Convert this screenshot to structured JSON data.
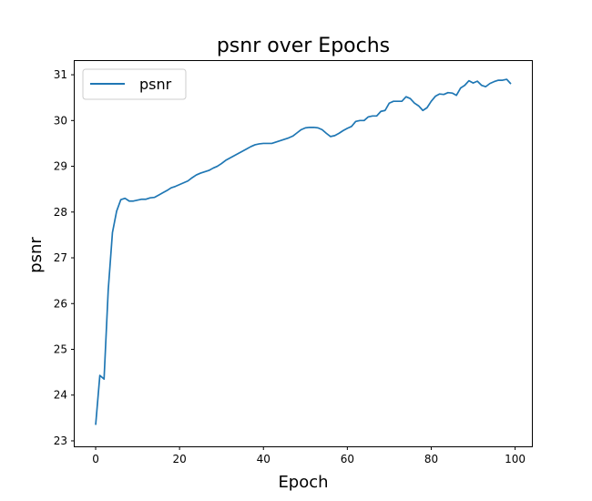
{
  "chart_data": {
    "type": "line",
    "title": "psnr over Epochs",
    "xlabel": "Epoch",
    "ylabel": "psnr",
    "xlim": [
      -5,
      104
    ],
    "ylim": [
      22.88,
      31.3
    ],
    "xticks": [
      0,
      20,
      40,
      60,
      80,
      100
    ],
    "yticks": [
      23,
      24,
      25,
      26,
      27,
      28,
      29,
      30,
      31
    ],
    "grid": false,
    "legend_position": "top-left",
    "series": [
      {
        "name": "psnr",
        "color": "#1f77b4",
        "x": [
          0,
          1,
          2,
          3,
          4,
          5,
          6,
          7,
          8,
          9,
          10,
          11,
          12,
          13,
          14,
          15,
          16,
          17,
          18,
          19,
          20,
          21,
          22,
          23,
          24,
          25,
          26,
          27,
          28,
          29,
          30,
          31,
          32,
          33,
          34,
          35,
          36,
          37,
          38,
          39,
          40,
          41,
          42,
          43,
          44,
          45,
          46,
          47,
          48,
          49,
          50,
          51,
          52,
          53,
          54,
          55,
          56,
          57,
          58,
          59,
          60,
          61,
          62,
          63,
          64,
          65,
          66,
          67,
          68,
          69,
          70,
          71,
          72,
          73,
          74,
          75,
          76,
          77,
          78,
          79,
          80,
          81,
          82,
          83,
          84,
          85,
          86,
          87,
          88,
          89,
          90,
          91,
          92,
          93,
          94,
          95,
          96,
          97,
          98,
          99
        ],
        "values": [
          23.35,
          24.43,
          24.35,
          26.3,
          27.55,
          28.02,
          28.27,
          28.3,
          28.24,
          28.24,
          28.26,
          28.28,
          28.28,
          28.31,
          28.32,
          28.37,
          28.42,
          28.47,
          28.53,
          28.56,
          28.6,
          28.64,
          28.68,
          28.75,
          28.81,
          28.85,
          28.88,
          28.91,
          28.96,
          29.0,
          29.06,
          29.13,
          29.18,
          29.23,
          29.28,
          29.33,
          29.38,
          29.43,
          29.47,
          29.49,
          29.5,
          29.5,
          29.5,
          29.53,
          29.56,
          29.59,
          29.62,
          29.66,
          29.73,
          29.8,
          29.84,
          29.85,
          29.85,
          29.84,
          29.8,
          29.72,
          29.65,
          29.67,
          29.72,
          29.78,
          29.83,
          29.87,
          29.98,
          30.0,
          30.0,
          30.08,
          30.1,
          30.1,
          30.2,
          30.22,
          30.38,
          30.42,
          30.42,
          30.42,
          30.52,
          30.48,
          30.38,
          30.32,
          30.22,
          30.28,
          30.42,
          30.53,
          30.58,
          30.57,
          30.61,
          30.6,
          30.55,
          30.71,
          30.77,
          30.87,
          30.82,
          30.86,
          30.77,
          30.74,
          30.81,
          30.85,
          30.88,
          30.88,
          30.9,
          30.8
        ]
      }
    ]
  }
}
